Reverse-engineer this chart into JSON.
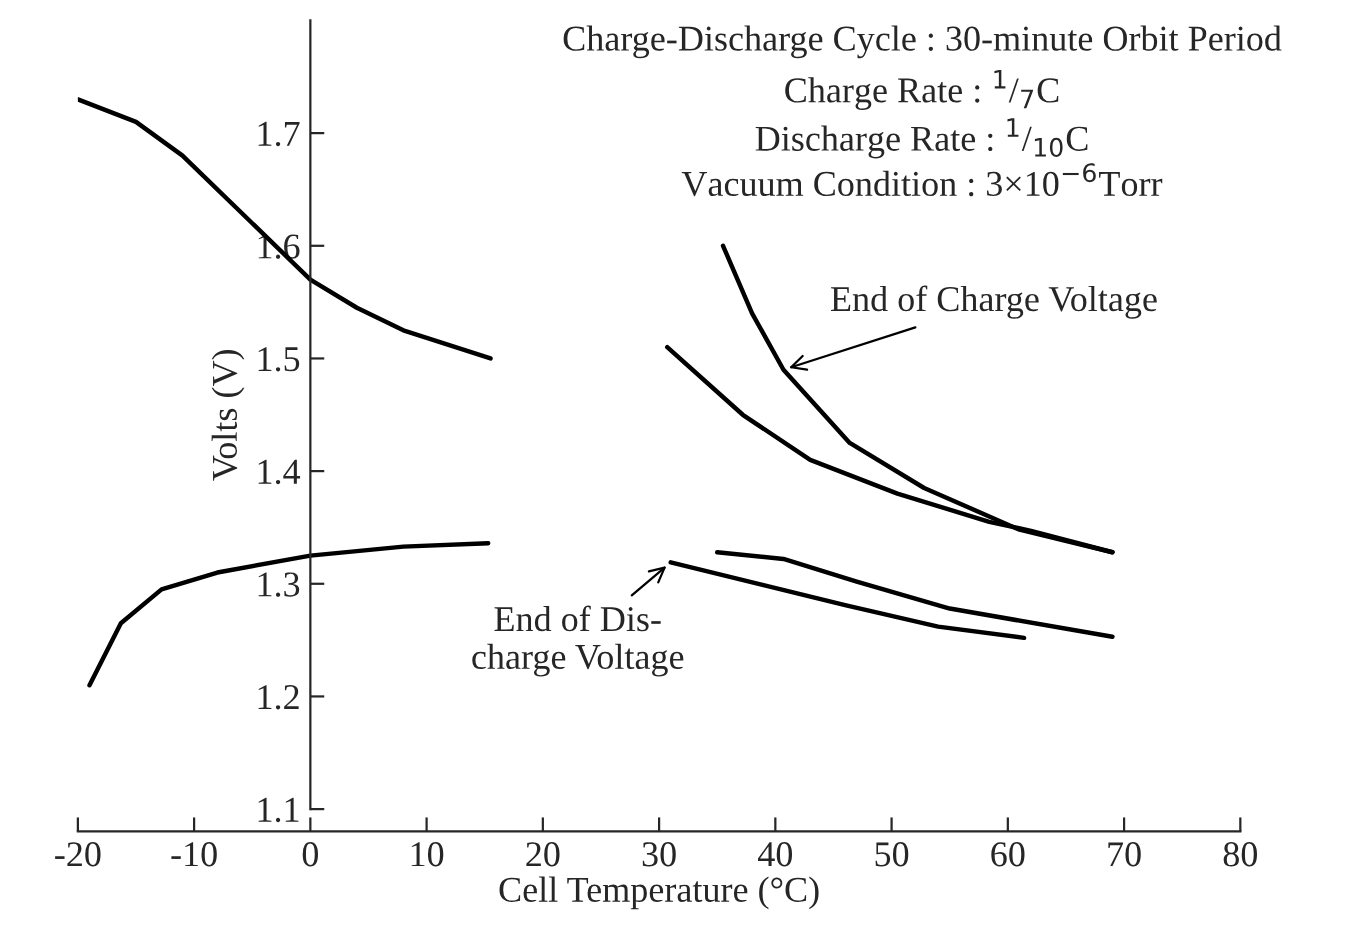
{
  "chart_data": {
    "type": "line",
    "xlabel": "Cell Temperature (°C)",
    "ylabel": "Volts (V)",
    "annotations": [
      "Charge-Discharge Cycle : 30-minute Orbit Period",
      "Charge Rate : $^{1}$/$_{7}$C",
      "Discharge Rate : $^{1}$/$_{10}$C",
      "Vacuum Condition : 3×10$^{−6}$Torr",
      {
        "text": "End of Charge Voltage",
        "x": 40.7,
        "y": 1.49
      },
      {
        "text": "End of Dis-\ncharge Voltage",
        "x": 31,
        "y": 1.319
      }
    ],
    "series": [
      {
        "color": "#000000",
        "x": [
          -20,
          -15,
          -11,
          -5,
          0,
          4,
          8,
          15.5
        ],
        "values": [
          1.73,
          1.71,
          1.68,
          1.62,
          1.57,
          1.545,
          1.525,
          1.5
        ]
      },
      {
        "color": "#000000",
        "x": [
          -19,
          -16.3,
          -12.8,
          -8,
          0,
          8,
          15.3
        ],
        "values": [
          1.21,
          1.265,
          1.295,
          1.31,
          1.325,
          1.333,
          1.336
        ]
      },
      {
        "color": "#000000",
        "x": [
          35.5,
          38,
          40.7,
          46.4,
          52.8,
          61,
          69
        ],
        "values": [
          1.6,
          1.54,
          1.49,
          1.425,
          1.385,
          1.348,
          1.328
        ]
      },
      {
        "color": "#000000",
        "x": [
          30.7,
          37.2,
          43,
          50.5,
          58.4,
          62,
          69
        ],
        "values": [
          1.51,
          1.45,
          1.41,
          1.38,
          1.355,
          1.347,
          1.328
        ]
      },
      {
        "color": "#000000",
        "x": [
          35,
          40.7,
          47,
          55,
          69
        ],
        "values": [
          1.328,
          1.322,
          1.302,
          1.278,
          1.253
        ]
      },
      {
        "color": "#000000",
        "x": [
          31,
          46,
          54,
          61.4
        ],
        "values": [
          1.319,
          1.281,
          1.262,
          1.252
        ]
      }
    ],
    "xlim": [
      -20,
      80
    ],
    "xticks": [
      -20,
      -10,
      0,
      10,
      20,
      30,
      40,
      50,
      60,
      70,
      80
    ],
    "ylim": [
      1.1,
      1.8
    ],
    "yticks": [
      1.1,
      1.2,
      1.3,
      1.4,
      1.5,
      1.6,
      1.7
    ],
    "grid": false,
    "legend": false,
    "marker": "none",
    "line_style": "solid"
  }
}
